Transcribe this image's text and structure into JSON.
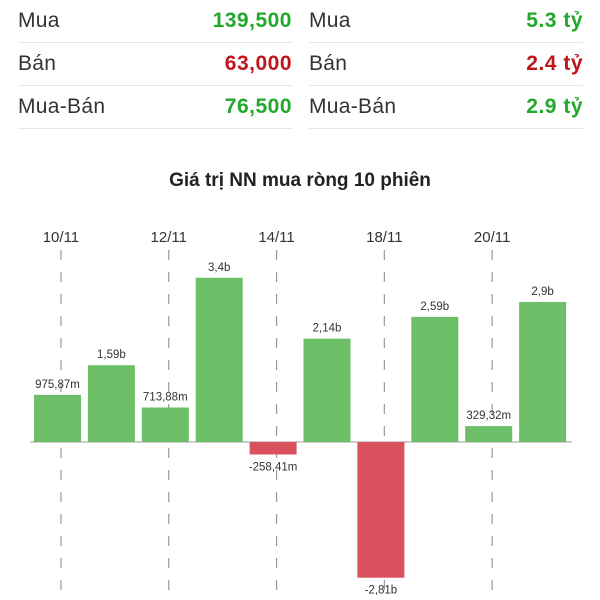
{
  "stats_left": [
    {
      "label": "Mua",
      "value": "139,500",
      "color": "green"
    },
    {
      "label": "Bán",
      "value": "63,000",
      "color": "red"
    },
    {
      "label": "Mua-Bán",
      "value": "76,500",
      "color": "green"
    }
  ],
  "stats_right": [
    {
      "label": "Mua",
      "value": "5.3 tỷ",
      "color": "green"
    },
    {
      "label": "Bán",
      "value": "2.4 tỷ",
      "color": "red"
    },
    {
      "label": "Mua-Bán",
      "value": "2.9 tỷ",
      "color": "green"
    }
  ],
  "colors": {
    "positive": "#6dbf67",
    "negative": "#d9505e",
    "grid": "#9a9a9a",
    "axis": "#bdbdbd"
  },
  "chart_data": {
    "type": "bar",
    "title": "Giá trị NN mua ròng 10 phiên",
    "x_tick_labels": [
      "10/11",
      "12/11",
      "14/11",
      "18/11",
      "20/11"
    ],
    "x_tick_positions": [
      0.5,
      2.5,
      4.5,
      6.5,
      8.5
    ],
    "values": [
      0.97587,
      1.59,
      0.71388,
      3.4,
      -0.25841,
      2.14,
      -2.81,
      2.59,
      0.32932,
      2.9
    ],
    "value_labels": [
      "975,87m",
      "1,59b",
      "713,88m",
      "3,4b",
      "-258,41m",
      "2,14b",
      "-2,81b",
      "2,59b",
      "329,32m",
      "2,9b"
    ],
    "ylim": [
      -2.9,
      3.4
    ],
    "grid": "vertical dashed"
  }
}
